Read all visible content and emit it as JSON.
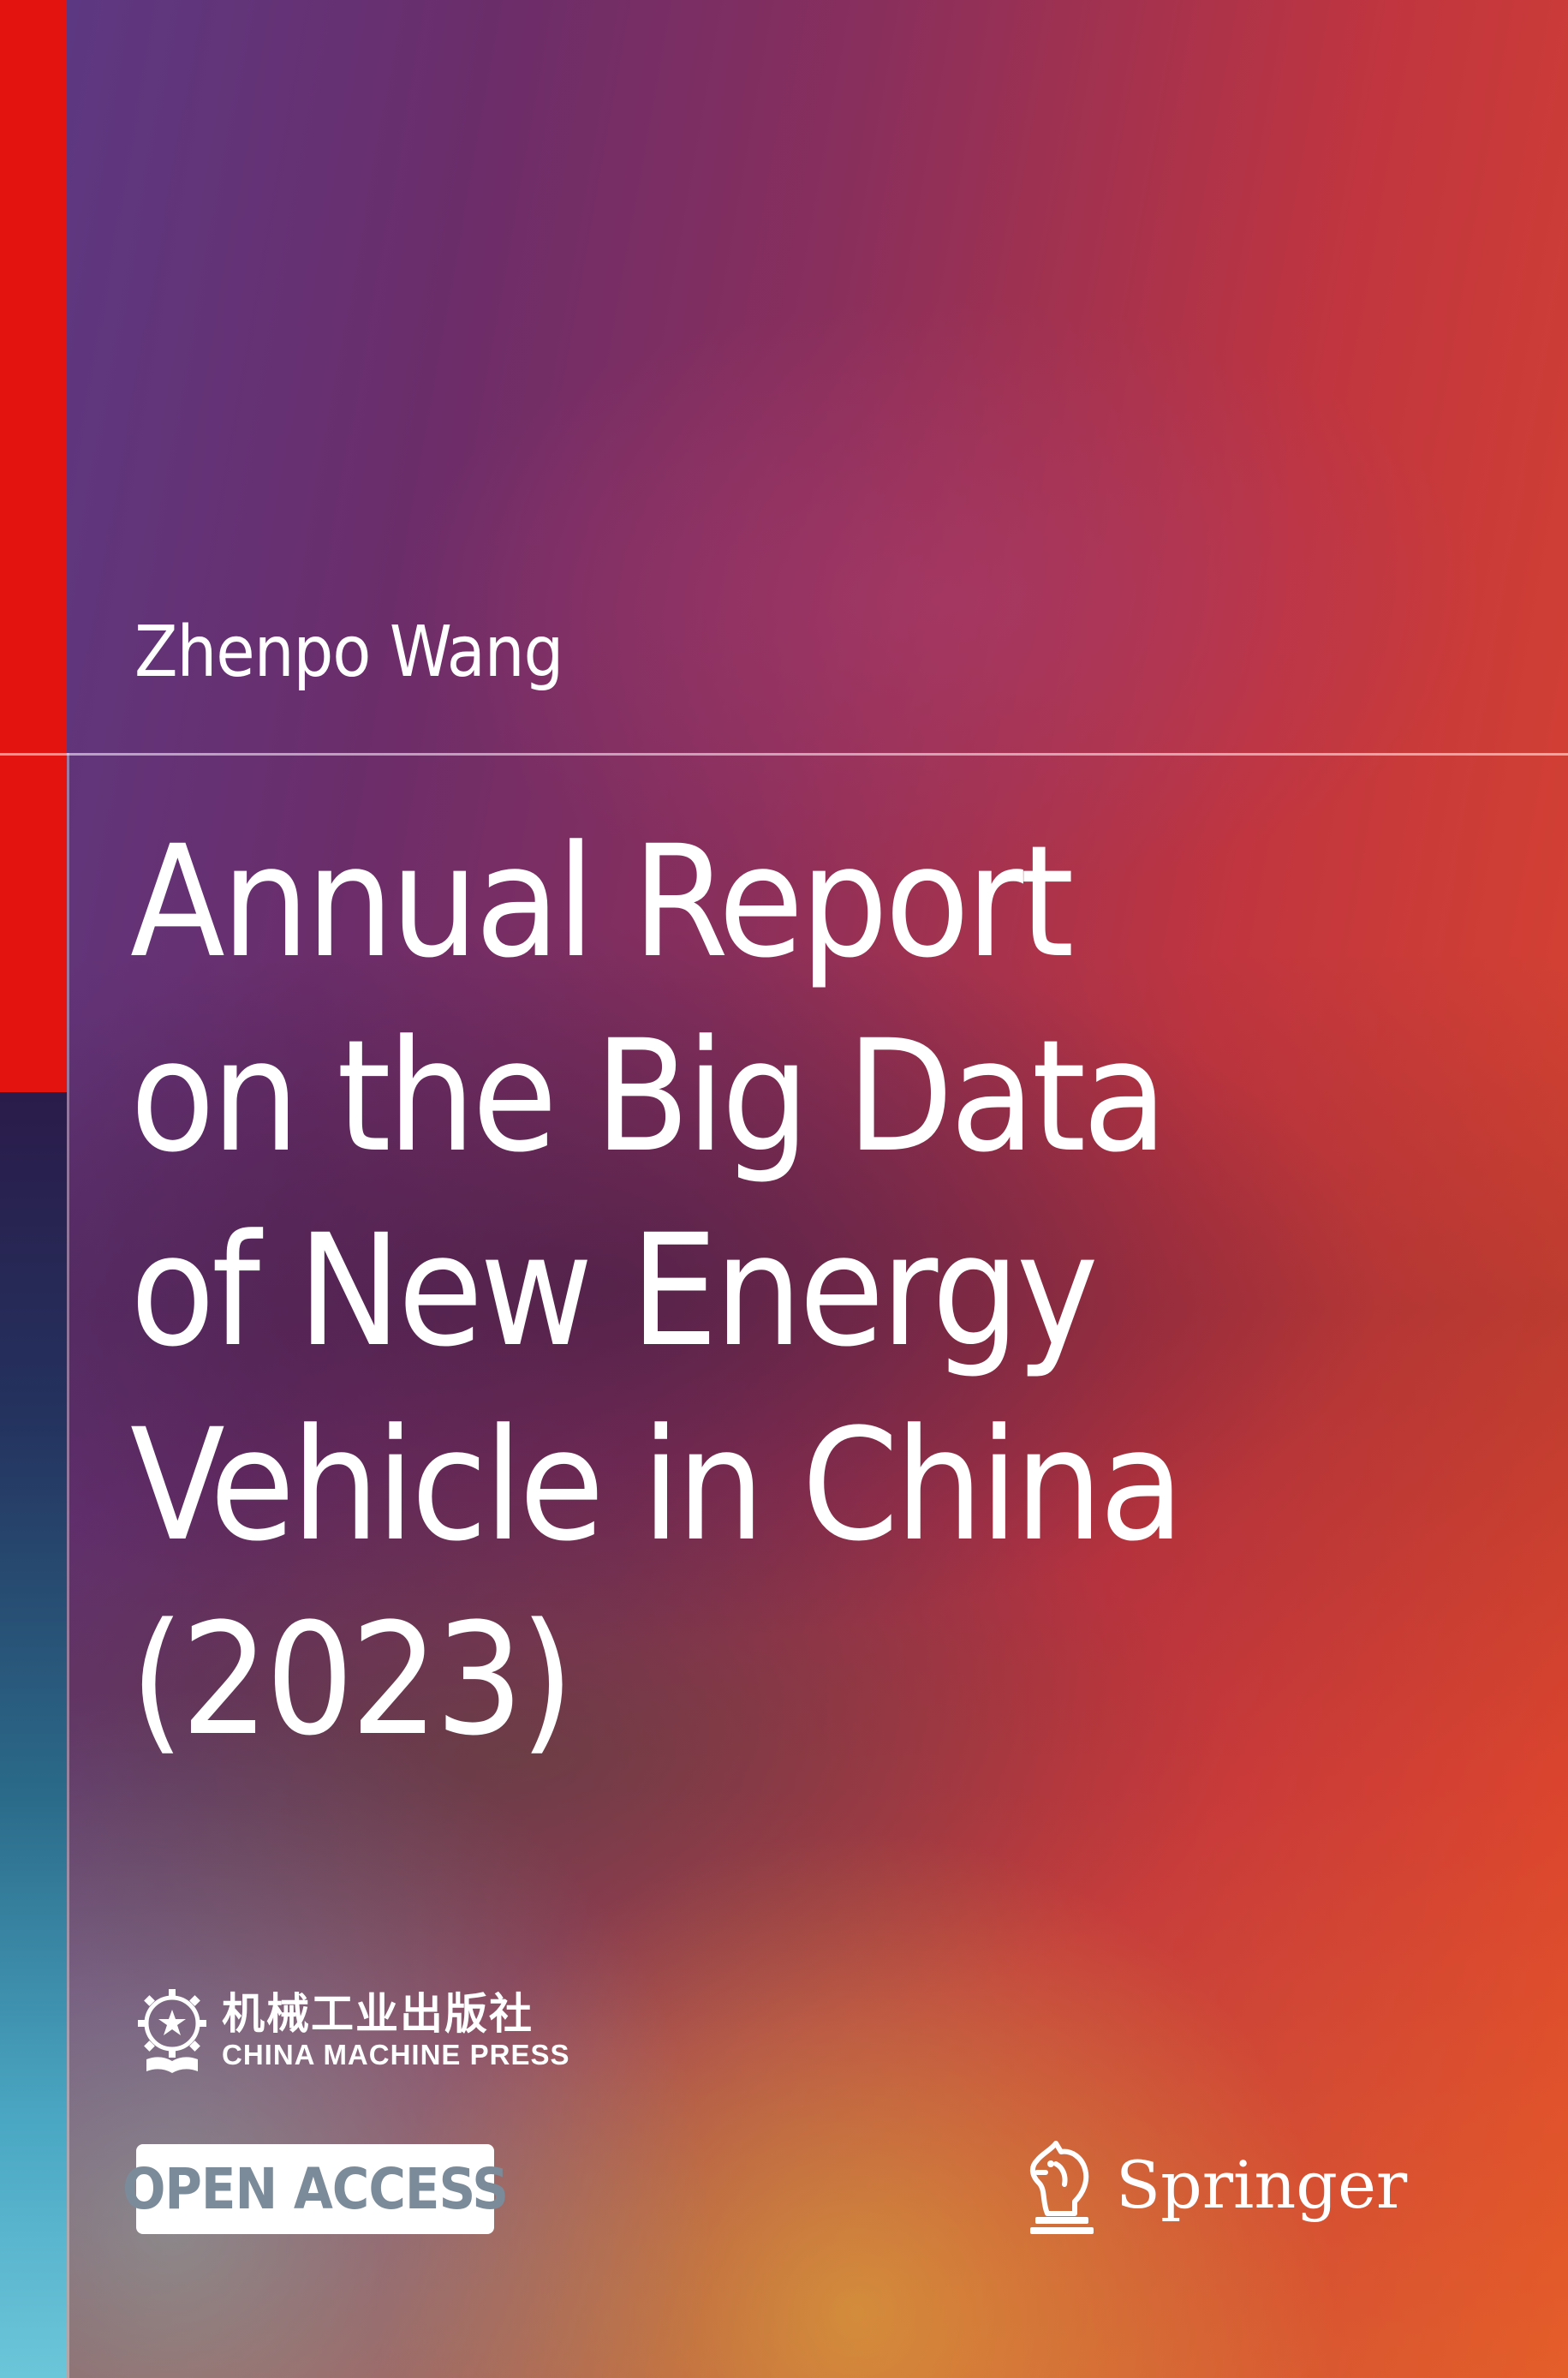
{
  "author": "Zhenpo Wang",
  "title_lines": [
    "Annual Report",
    "on the Big Data",
    "of New Energy",
    "Vehicle in China",
    "(2023)"
  ],
  "publisher": {
    "chinese_name": "机械工业出版社",
    "english_name": "CHINA MACHINE PRESS",
    "logo_icon": "gear-star-book-emblem-icon"
  },
  "badge": {
    "label": "OPEN ACCESS"
  },
  "imprint": {
    "name": "Springer",
    "logo_icon": "knight-horse-icon"
  },
  "colors": {
    "spine_red": "#e3140f",
    "badge_text": "#7c8b99",
    "text": "#ffffff"
  }
}
